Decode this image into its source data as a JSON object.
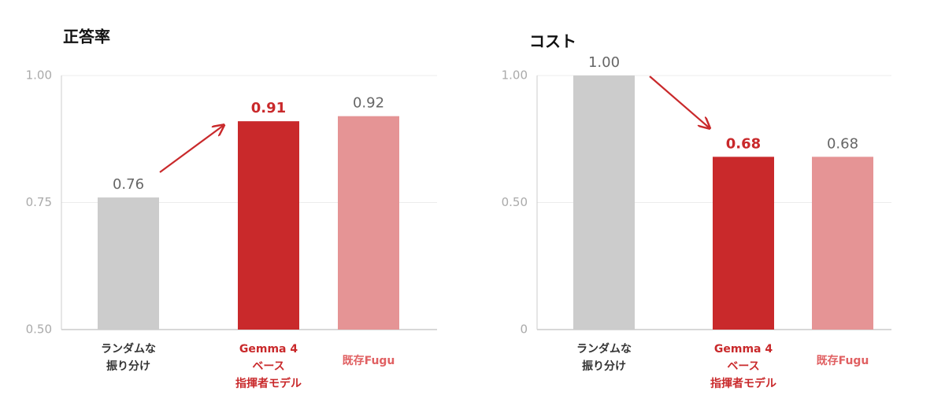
{
  "chart_data": [
    {
      "type": "bar",
      "title": "正答率",
      "categories": [
        "ランダムな\n振り分け",
        "Gemma 4\nベース\n指揮者モデル",
        "既存Fugu"
      ],
      "values": [
        0.76,
        0.91,
        0.92
      ],
      "colors": [
        "#cccccc",
        "#c9292b",
        "#e59495"
      ],
      "label_colors": [
        "#333333",
        "#c9292b",
        "#e06062"
      ],
      "value_label_colors": [
        "#666666",
        "#c9292b",
        "#666666"
      ],
      "value_label_bold": [
        false,
        true,
        false
      ],
      "ylim": [
        0.5,
        1.0
      ],
      "yticks": [
        {
          "value": 0.5,
          "label": "0.50"
        },
        {
          "value": 0.75,
          "label": "0.75"
        },
        {
          "value": 1.0,
          "label": "1.00"
        }
      ],
      "grid": true
    },
    {
      "type": "bar",
      "title": "コスト",
      "categories": [
        "ランダムな\n振り分け",
        "Gemma 4\nベース\n指揮者モデル",
        "既存Fugu"
      ],
      "values": [
        1.0,
        0.68,
        0.68
      ],
      "value_labels": [
        "1.00",
        "0.68",
        "0.68"
      ],
      "colors": [
        "#cccccc",
        "#c9292b",
        "#e59495"
      ],
      "label_colors": [
        "#333333",
        "#c9292b",
        "#e06062"
      ],
      "value_label_colors": [
        "#666666",
        "#c9292b",
        "#666666"
      ],
      "value_label_bold": [
        false,
        true,
        false
      ],
      "ylim": [
        0,
        1.0
      ],
      "yticks": [
        0,
        {
          "value": 0.5,
          "label": "0.50"
        },
        {
          "value": 1.0,
          "label": "1.00"
        }
      ],
      "grid": true
    }
  ]
}
